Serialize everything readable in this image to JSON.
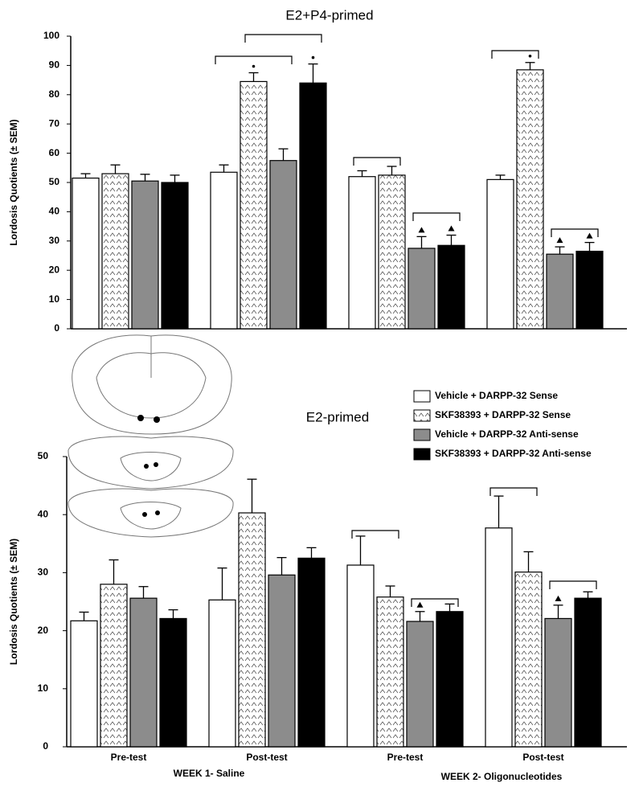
{
  "chart_data": [
    {
      "type": "bar",
      "title": "E2+P4-primed",
      "y_label": "Lordosis Quotients (± SEM)",
      "categories": [
        null,
        null,
        null,
        null
      ],
      "ylim": [
        0,
        100
      ],
      "yticks": [
        0,
        10,
        20,
        30,
        40,
        50,
        60,
        70,
        80,
        90,
        100
      ],
      "series": [
        {
          "color": "#ffffff",
          "values": [
            51.5,
            53.5,
            52,
            51
          ],
          "errors": [
            1.5,
            2.5,
            2,
            1.5
          ]
        },
        {
          "color": "#ffffff",
          "fill_pattern": "zigzag",
          "values": [
            53,
            84.5,
            52.5,
            88.5
          ],
          "errors": [
            3,
            3,
            3,
            2.5
          ]
        },
        {
          "color": "#8c8c8c",
          "values": [
            50.5,
            57.5,
            27.5,
            25.5
          ],
          "errors": [
            2.3,
            4,
            4,
            2.5
          ]
        },
        {
          "color": "#000000",
          "values": [
            50,
            84,
            28.5,
            26.5
          ],
          "errors": [
            2.5,
            6.5,
            3.5,
            3
          ]
        }
      ]
    },
    {
      "type": "bar",
      "title": "E2-primed",
      "y_label": "Lordosis Quotients (± SEM)",
      "categories": [
        "Pre-test",
        "Post-test",
        "Pre-test",
        "Post-test"
      ],
      "groups": [
        "WEEK 1- Saline",
        "WEEK 2- Oligonucleotides"
      ],
      "ylim": [
        0,
        50
      ],
      "yticks": [
        0,
        10,
        20,
        30,
        40,
        50
      ],
      "legend": "upper right",
      "series": [
        {
          "name": "Vehicle + DARPP-32 Sense",
          "color": "#ffffff",
          "values": [
            21.7,
            25.3,
            31.3,
            37.7
          ],
          "errors": [
            1.5,
            5.5,
            5,
            5.5
          ]
        },
        {
          "name": "SKF38393 + DARPP-32 Sense",
          "color": "#ffffff",
          "fill_pattern": "zigzag",
          "values": [
            28,
            40.3,
            25.8,
            30.1
          ],
          "errors": [
            4.2,
            5.8,
            1.9,
            3.5
          ]
        },
        {
          "name": "Vehicle + DARPP-32 Anti-sense",
          "color": "#8c8c8c",
          "values": [
            25.6,
            29.6,
            21.6,
            22.1
          ],
          "errors": [
            2,
            3,
            1.7,
            2.3
          ]
        },
        {
          "name": "SKF38393 + DARPP-32 Anti-sense",
          "color": "#000000",
          "values": [
            22.1,
            32.5,
            23.3,
            25.6
          ],
          "errors": [
            1.5,
            1.8,
            1.3,
            1.1
          ]
        }
      ]
    }
  ]
}
